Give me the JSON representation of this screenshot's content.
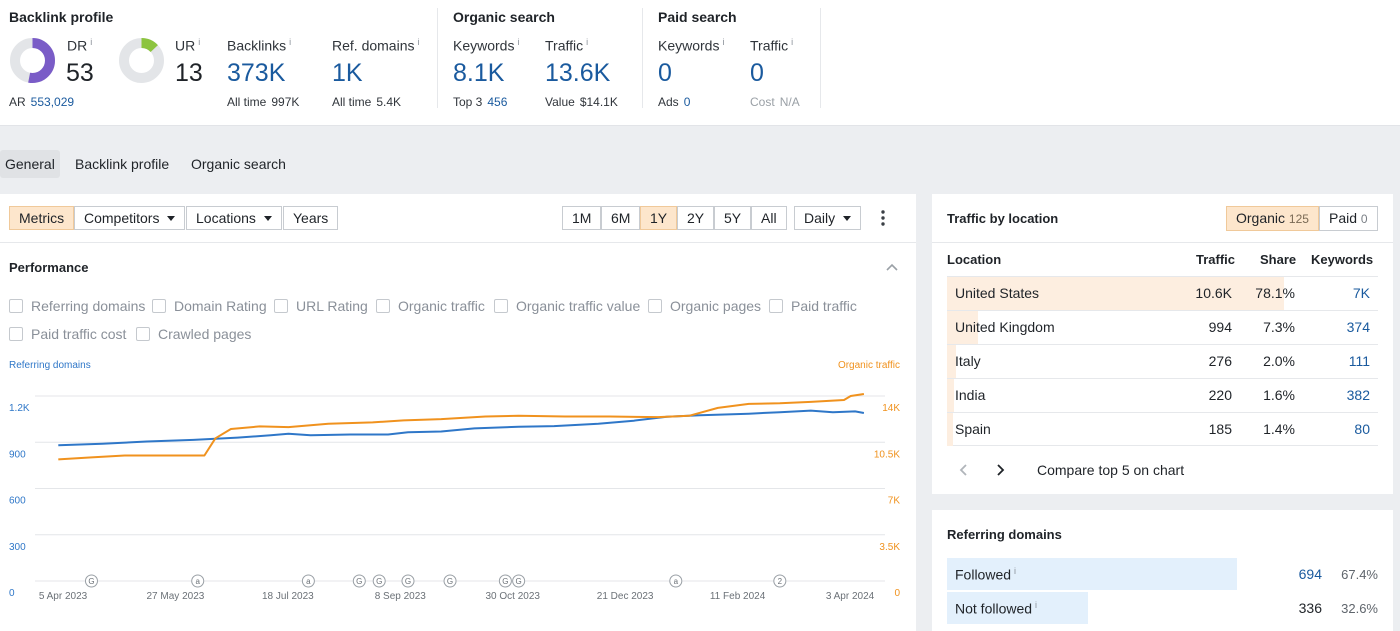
{
  "backlink_profile": {
    "title": "Backlink profile",
    "dr": {
      "label": "DR",
      "value": "53",
      "fill": 0.53
    },
    "ur": {
      "label": "UR",
      "value": "13",
      "fill": 0.13
    },
    "ar": {
      "label": "AR",
      "value": "553,029"
    },
    "backlinks": {
      "label": "Backlinks",
      "value": "373K",
      "sub_label": "All time",
      "sub_value": "997K"
    },
    "ref_domains": {
      "label": "Ref. domains",
      "value": "1K",
      "sub_label": "All time",
      "sub_value": "5.4K"
    },
    "info_mark": "i"
  },
  "organic_search": {
    "title": "Organic search",
    "keywords": {
      "label": "Keywords",
      "value": "8.1K",
      "sub_label": "Top 3",
      "sub_value": "456"
    },
    "traffic": {
      "label": "Traffic",
      "value": "13.6K",
      "sub_label": "Value",
      "sub_value": "$14.1K"
    }
  },
  "paid_search": {
    "title": "Paid search",
    "keywords": {
      "label": "Keywords",
      "value": "0",
      "sub_label": "Ads",
      "sub_value": "0"
    },
    "traffic": {
      "label": "Traffic",
      "value": "0",
      "sub_label": "Cost",
      "sub_value": "N/A"
    }
  },
  "tabs": [
    {
      "label": "General",
      "active": true
    },
    {
      "label": "Backlink profile"
    },
    {
      "label": "Organic search"
    }
  ],
  "toolbar": {
    "metrics": "Metrics",
    "competitors": "Competitors",
    "locations": "Locations",
    "years": "Years",
    "ranges": [
      "1M",
      "6M",
      "1Y",
      "2Y",
      "5Y",
      "All"
    ],
    "active_range": "1Y",
    "interval": "Daily"
  },
  "performance": {
    "title": "Performance",
    "checkboxes": [
      {
        "label": "Referring domains",
        "checked": true,
        "color": "#2f77c8"
      },
      {
        "label": "Domain Rating",
        "checked": false
      },
      {
        "label": "URL Rating",
        "checked": false
      },
      {
        "label": "Organic traffic",
        "checked": true,
        "color": "#f0921e"
      },
      {
        "label": "Organic traffic value",
        "checked": false
      },
      {
        "label": "Organic pages",
        "checked": false
      },
      {
        "label": "Paid traffic",
        "checked": false
      },
      {
        "label": "Paid traffic cost",
        "checked": false
      },
      {
        "label": "Crawled pages",
        "checked": false
      }
    ]
  },
  "chart_data": {
    "type": "line",
    "left_axis_label": "Referring domains",
    "right_axis_label": "Organic traffic",
    "left_ticks": [
      "0",
      "300",
      "600",
      "900",
      "1.2K"
    ],
    "right_ticks": [
      "0",
      "3.5K",
      "7K",
      "10.5K",
      "14K"
    ],
    "left_range": [
      0,
      1200
    ],
    "right_range": [
      0,
      14000
    ],
    "x_labels": [
      "5 Apr 2023",
      "27 May 2023",
      "18 Jul 2023",
      "8 Sep 2023",
      "30 Oct 2023",
      "21 Dec 2023",
      "11 Feb 2024",
      "3 Apr 2024"
    ],
    "x_range": [
      "2023-03-30",
      "2024-04-08"
    ],
    "annotations": [
      {
        "date": "2023-04-20",
        "glyph": "G"
      },
      {
        "date": "2023-06-07",
        "glyph": "a"
      },
      {
        "date": "2023-07-27",
        "glyph": "a"
      },
      {
        "date": "2023-08-19",
        "glyph": "G"
      },
      {
        "date": "2023-08-28",
        "glyph": "G"
      },
      {
        "date": "2023-09-10",
        "glyph": "G"
      },
      {
        "date": "2023-09-29",
        "glyph": "G"
      },
      {
        "date": "2023-10-24",
        "glyph": "G"
      },
      {
        "date": "2023-10-30",
        "glyph": "G"
      },
      {
        "date": "2024-01-09",
        "glyph": "a"
      },
      {
        "date": "2024-02-25",
        "glyph": "2"
      }
    ],
    "series": [
      {
        "name": "Referring domains",
        "axis": "left",
        "color": "#2f77c8",
        "points": [
          [
            "2023-04-05",
            880
          ],
          [
            "2023-04-25",
            890
          ],
          [
            "2023-05-15",
            905
          ],
          [
            "2023-06-05",
            915
          ],
          [
            "2023-06-25",
            930
          ],
          [
            "2023-07-10",
            945
          ],
          [
            "2023-07-18",
            955
          ],
          [
            "2023-07-28",
            945
          ],
          [
            "2023-08-15",
            950
          ],
          [
            "2023-09-01",
            950
          ],
          [
            "2023-09-10",
            965
          ],
          [
            "2023-09-25",
            970
          ],
          [
            "2023-10-10",
            990
          ],
          [
            "2023-10-30",
            1000
          ],
          [
            "2023-11-15",
            1005
          ],
          [
            "2023-12-05",
            1020
          ],
          [
            "2023-12-21",
            1040
          ],
          [
            "2024-01-05",
            1065
          ],
          [
            "2024-01-20",
            1075
          ],
          [
            "2024-02-11",
            1085
          ],
          [
            "2024-02-25",
            1095
          ],
          [
            "2024-03-10",
            1105
          ],
          [
            "2024-03-20",
            1095
          ],
          [
            "2024-03-30",
            1100
          ],
          [
            "2024-04-03",
            1090
          ]
        ]
      },
      {
        "name": "Organic traffic",
        "axis": "right",
        "color": "#f0921e",
        "points": [
          [
            "2023-04-05",
            9200
          ],
          [
            "2023-04-20",
            9350
          ],
          [
            "2023-05-05",
            9500
          ],
          [
            "2023-05-27",
            9500
          ],
          [
            "2023-06-10",
            9500
          ],
          [
            "2023-06-15",
            10800
          ],
          [
            "2023-06-22",
            11500
          ],
          [
            "2023-07-05",
            11700
          ],
          [
            "2023-07-18",
            11650
          ],
          [
            "2023-08-05",
            11900
          ],
          [
            "2023-08-25",
            12000
          ],
          [
            "2023-09-08",
            12150
          ],
          [
            "2023-09-25",
            12250
          ],
          [
            "2023-10-15",
            12450
          ],
          [
            "2023-10-30",
            12500
          ],
          [
            "2023-11-20",
            12450
          ],
          [
            "2023-12-10",
            12450
          ],
          [
            "2024-01-01",
            12400
          ],
          [
            "2024-01-15",
            12500
          ],
          [
            "2024-01-28",
            13100
          ],
          [
            "2024-02-11",
            13400
          ],
          [
            "2024-02-25",
            13450
          ],
          [
            "2024-03-10",
            13550
          ],
          [
            "2024-03-25",
            13700
          ],
          [
            "2024-03-28",
            14000
          ],
          [
            "2024-04-03",
            14150
          ]
        ]
      }
    ]
  },
  "traffic_by_location": {
    "title": "Traffic by location",
    "organic_label": "Organic",
    "organic_count": "125",
    "paid_label": "Paid",
    "paid_count": "0",
    "headers": [
      "Location",
      "Traffic",
      "Share",
      "Keywords"
    ],
    "rows": [
      {
        "location": "United States",
        "traffic": "10.6K",
        "share": "78.1%",
        "share_value": 78.1,
        "keywords": "7K"
      },
      {
        "location": "United Kingdom",
        "traffic": "994",
        "share": "7.3%",
        "share_value": 7.3,
        "keywords": "374"
      },
      {
        "location": "Italy",
        "traffic": "276",
        "share": "2.0%",
        "share_value": 2.0,
        "keywords": "111"
      },
      {
        "location": "India",
        "traffic": "220",
        "share": "1.6%",
        "share_value": 1.6,
        "keywords": "382"
      },
      {
        "location": "Spain",
        "traffic": "185",
        "share": "1.4%",
        "share_value": 1.4,
        "keywords": "80"
      }
    ],
    "compare_label": "Compare top 5 on chart"
  },
  "referring_domains": {
    "title": "Referring domains",
    "rows": [
      {
        "label": "Followed",
        "count": "694",
        "share": "67.4%",
        "share_value": 67.4,
        "link": true
      },
      {
        "label": "Not followed",
        "count": "336",
        "share": "32.6%",
        "share_value": 32.6,
        "link": false
      }
    ]
  }
}
